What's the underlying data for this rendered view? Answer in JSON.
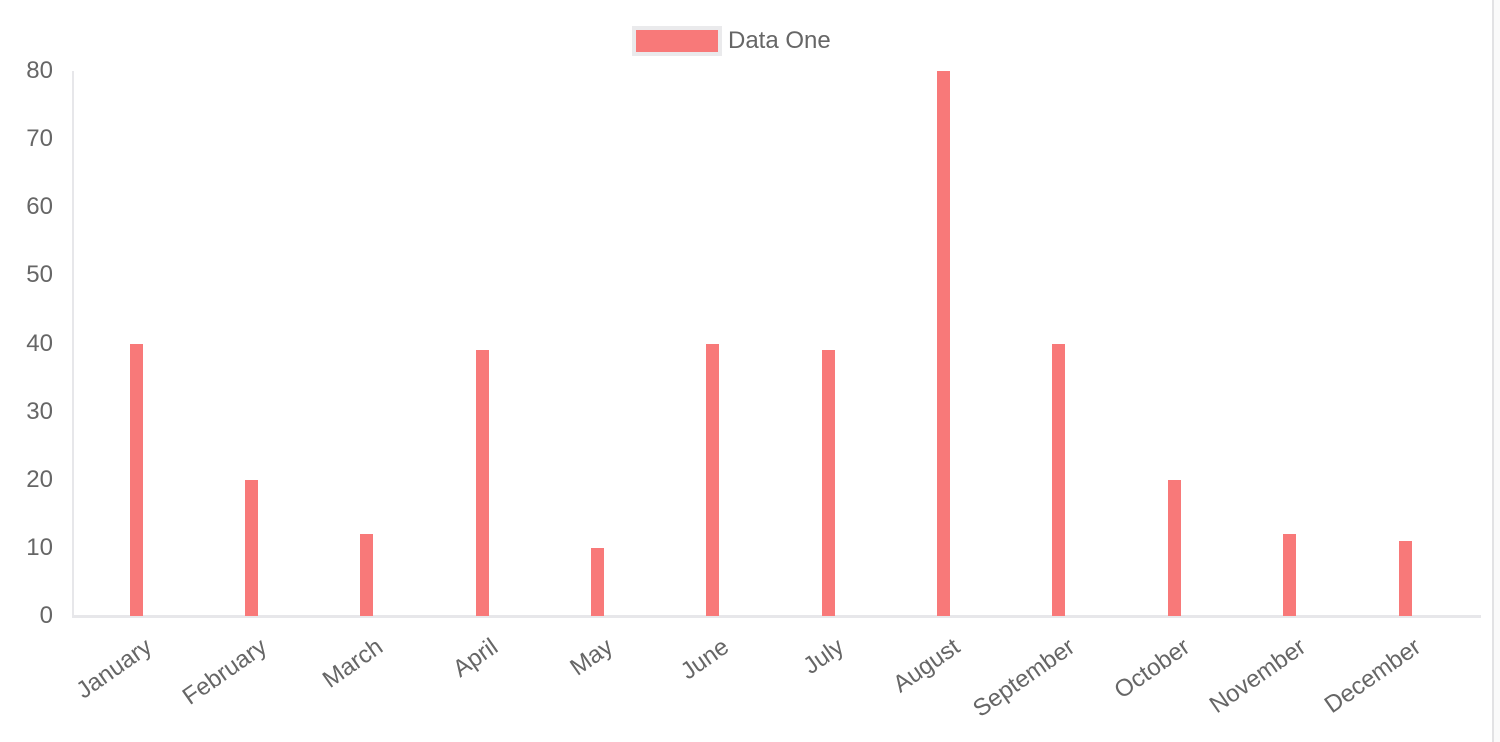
{
  "legend": {
    "label": "Data One"
  },
  "chart_data": {
    "type": "bar",
    "title": "",
    "xlabel": "",
    "ylabel": "",
    "categories": [
      "January",
      "February",
      "March",
      "April",
      "May",
      "June",
      "July",
      "August",
      "September",
      "October",
      "November",
      "December"
    ],
    "series": [
      {
        "name": "Data One",
        "color": "#f87979",
        "values": [
          40,
          20,
          12,
          39,
          10,
          40,
          39,
          80,
          40,
          20,
          12,
          11
        ]
      }
    ],
    "ylim": [
      0,
      80
    ],
    "yticks": [
      0,
      10,
      20,
      30,
      40,
      50,
      60,
      70,
      80
    ],
    "grid": false,
    "legend_position": "top",
    "x_label_rotation_deg": -35
  },
  "colors": {
    "bar": "#f87979",
    "axis_line": "#e7e7ea",
    "tick_text": "#666666",
    "legend_box_border": "#eaeaec"
  }
}
